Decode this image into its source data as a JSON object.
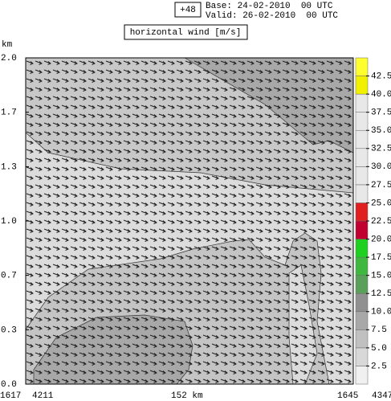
{
  "chart_data": {
    "type": "contour",
    "title": "horizontal wind [m/s]",
    "forecast_step": "+48",
    "base": "Base: 24-02-2010  00 UTC",
    "valid": "Valid: 26-02-2010  00 UTC",
    "y_label": "km",
    "ylim": [
      0,
      2
    ],
    "yticks": [
      {
        "value": 0,
        "label": "0.0"
      },
      {
        "value": 0.333,
        "label": "0.3"
      },
      {
        "value": 0.667,
        "label": "0.7"
      },
      {
        "value": 1,
        "label": "1.0"
      },
      {
        "value": 1.333,
        "label": "1.3"
      },
      {
        "value": 1.667,
        "label": "1.7"
      },
      {
        "value": 2,
        "label": "2.0"
      }
    ],
    "x_labels": [
      "1617",
      "4211",
      "152 km",
      "1645",
      "4347"
    ],
    "colorbar": {
      "bounds": [
        0,
        2.5,
        5,
        7.5,
        10,
        12.5,
        15,
        17.5,
        20,
        22.5,
        25,
        27.5,
        30,
        32.5,
        35,
        37.5,
        40,
        42.5,
        45
      ],
      "colors": [
        "#f0f0f0",
        "#d8d8d8",
        "#c0c0c0",
        "#a8a8a8",
        "#909090",
        "#5aa05a",
        "#40b840",
        "#20d020",
        "#c00030",
        "#e02020",
        "#e8e8e8",
        "#e8e8e8",
        "#e8e8e8",
        "#e8e8e8",
        "#e8e8e8",
        "#e8e8e8",
        "#f0f000",
        "#ffff30"
      ],
      "ticks": [
        2.5,
        {
          "value": 5,
          "label": "5.0"
        },
        7.5,
        {
          "value": 10,
          "label": "10.0"
        },
        12.5,
        {
          "value": 15,
          "label": "15.0"
        },
        17.5,
        {
          "value": 20,
          "label": "20.0"
        },
        22.5,
        {
          "value": 25,
          "label": "25.0"
        },
        27.5,
        {
          "value": 30,
          "label": "30.0"
        },
        32.5,
        {
          "value": 35,
          "label": "35.0"
        },
        37.5,
        {
          "value": 40,
          "label": "40.0"
        },
        42.5
      ]
    }
  }
}
